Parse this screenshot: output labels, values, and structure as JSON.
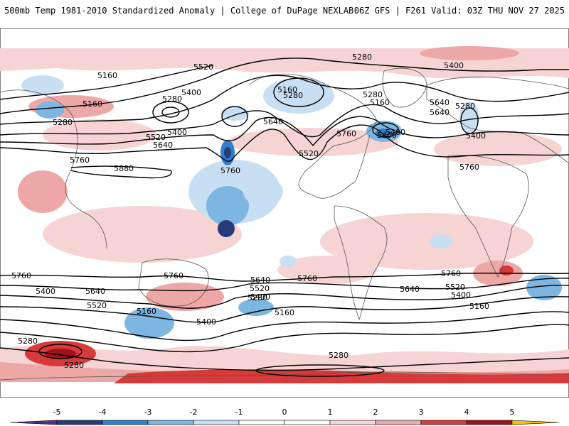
{
  "header": {
    "title": "500mb Temp 1981-2010 Standardized Anomaly | College of DuPage NEXLAB",
    "run_info": "06Z GFS | F261 Valid: 03Z THU NOV 27 2025"
  },
  "colors": {
    "land": "#ffffff",
    "coast": "#555555",
    "contour": "#000000",
    "warm_light": "#f6d4d4",
    "warm_mid": "#eda7a7",
    "warm_strong": "#d63a3a",
    "warm_deep": "#a3101c",
    "cold_light": "#c8def2",
    "cold_mid": "#7eb6e2",
    "cold_strong": "#2f7fcc",
    "cold_deep": "#273a7a"
  },
  "contour_labels": [
    "5520",
    "5280",
    "5400",
    "5160",
    "5280",
    "5400",
    "5160",
    "5280",
    "5400",
    "5520",
    "5640",
    "5760",
    "5880",
    "5760",
    "5640",
    "5520",
    "5400",
    "5760",
    "5640",
    "5280",
    "5160",
    "5400",
    "5280",
    "5160",
    "5400",
    "5640",
    "5760",
    "5280",
    "5160",
    "5760",
    "5640",
    "5520",
    "5400",
    "5280",
    "5160",
    "5280",
    "5400",
    "5760",
    "5520",
    "5640",
    "5400",
    "5280",
    "5760",
    "5760",
    "5640",
    "5520",
    "5400",
    "5280",
    "5160"
  ],
  "colorbar": {
    "ticks": [
      "-5",
      "-4",
      "-3",
      "-2",
      "-1",
      "0",
      "1",
      "2",
      "3",
      "4",
      "5"
    ],
    "colors": [
      "#5b2c8a",
      "#273a7a",
      "#2f7fcc",
      "#7eb6e2",
      "#c8def2",
      "#ffffff",
      "#ffffff",
      "#f6d4d4",
      "#eda7a7",
      "#d63a3a",
      "#a3101c",
      "#f2c200"
    ]
  }
}
